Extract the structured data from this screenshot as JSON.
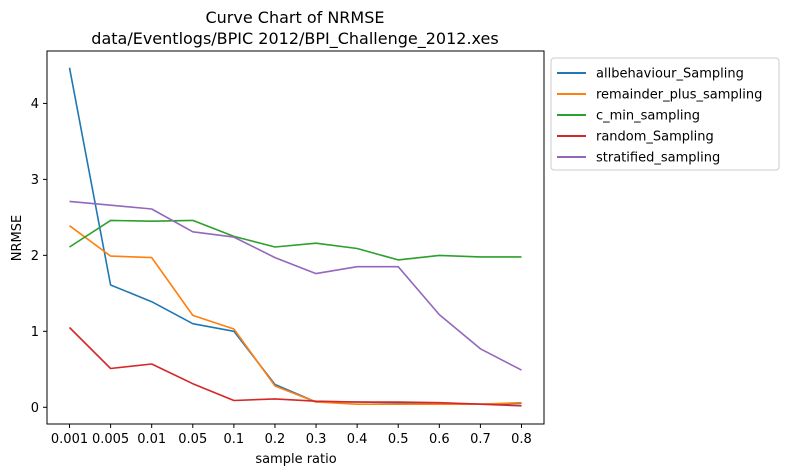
{
  "chart_data": {
    "type": "line",
    "title": "Curve Chart of NRMSE",
    "subtitle": "data/Eventlogs/BPIC 2012/BPI_Challenge_2012.xes",
    "xlabel": "sample ratio",
    "ylabel": "NRMSE",
    "categories": [
      "0.001",
      "0.005",
      "0.01",
      "0.05",
      "0.1",
      "0.2",
      "0.3",
      "0.4",
      "0.5",
      "0.6",
      "0.7",
      "0.8"
    ],
    "ylim": [
      -0.22,
      4.69
    ],
    "yticks": [
      "0",
      "1",
      "2",
      "3",
      "4"
    ],
    "grid": false,
    "legend_position": "outside-top-right",
    "series": [
      {
        "name": "allbehaviour_Sampling",
        "color": "#1f77b4",
        "values": [
          4.47,
          1.61,
          1.39,
          1.1,
          1.0,
          0.3,
          0.07,
          0.07,
          0.06,
          0.05,
          0.04,
          0.05
        ]
      },
      {
        "name": "remainder_plus_sampling",
        "color": "#ff7f0e",
        "values": [
          2.39,
          1.99,
          1.97,
          1.21,
          1.03,
          0.28,
          0.07,
          0.04,
          0.04,
          0.04,
          0.04,
          0.06
        ]
      },
      {
        "name": "c_min_sampling",
        "color": "#2ca02c",
        "values": [
          2.11,
          2.46,
          2.45,
          2.46,
          2.25,
          2.11,
          2.16,
          2.09,
          1.94,
          2.0,
          1.98,
          1.98
        ]
      },
      {
        "name": "random_Sampling",
        "color": "#d62728",
        "values": [
          1.05,
          0.51,
          0.57,
          0.31,
          0.09,
          0.11,
          0.08,
          0.07,
          0.07,
          0.06,
          0.04,
          0.02
        ]
      },
      {
        "name": "stratified_sampling",
        "color": "#9467bd",
        "values": [
          2.71,
          2.66,
          2.61,
          2.31,
          2.24,
          1.97,
          1.76,
          1.85,
          1.85,
          1.22,
          0.77,
          0.49
        ]
      }
    ]
  }
}
